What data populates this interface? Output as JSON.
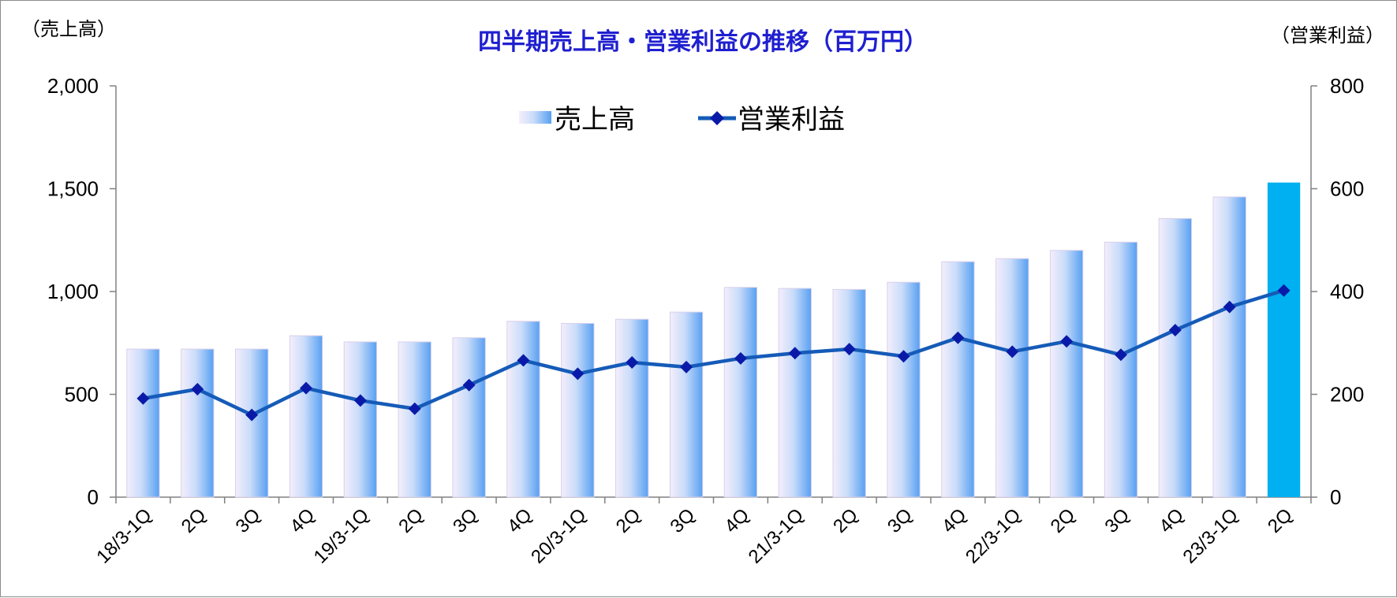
{
  "chart_data": {
    "type": "bar",
    "title": "四半期売上高・営業利益の推移（百万円）",
    "left_axis_unit": "（売上高）",
    "right_axis_unit": "（営業利益）",
    "ylim_left": [
      0,
      2000
    ],
    "ylim_right": [
      0,
      800
    ],
    "left_ticks": [
      "0",
      "500",
      "1,000",
      "1,500",
      "2,000"
    ],
    "left_tick_values": [
      0,
      500,
      1000,
      1500,
      2000
    ],
    "right_ticks": [
      "0",
      "200",
      "400",
      "600",
      "800"
    ],
    "right_tick_values": [
      0,
      200,
      400,
      600,
      800
    ],
    "grid": false,
    "legend_position": "top-center",
    "categories": [
      "18/3-1Q",
      "2Q",
      "3Q",
      "4Q",
      "19/3-1Q",
      "2Q",
      "3Q",
      "4Q",
      "20/3-1Q",
      "2Q",
      "3Q",
      "4Q",
      "21/3-1Q",
      "2Q",
      "3Q",
      "4Q",
      "22/3-1Q",
      "2Q",
      "3Q",
      "4Q",
      "23/3-1Q",
      "2Q"
    ],
    "series": [
      {
        "name": "売上高",
        "type": "bar",
        "axis": "left",
        "values": [
          720,
          720,
          720,
          785,
          755,
          755,
          775,
          855,
          845,
          865,
          900,
          1020,
          1015,
          1010,
          1045,
          1145,
          1160,
          1200,
          1240,
          1355,
          1460,
          1530
        ],
        "color": "#6fa8f0",
        "highlight_index": 21,
        "highlight_color": "#00b0f0"
      },
      {
        "name": "営業利益",
        "type": "line",
        "axis": "right",
        "values": [
          192,
          210,
          160,
          212,
          188,
          172,
          218,
          266,
          240,
          262,
          253,
          270,
          280,
          288,
          274,
          310,
          283,
          303,
          277,
          325,
          370,
          402
        ],
        "color": "#155bb8",
        "marker": "diamond",
        "marker_color": "#0a1aa8"
      }
    ]
  }
}
